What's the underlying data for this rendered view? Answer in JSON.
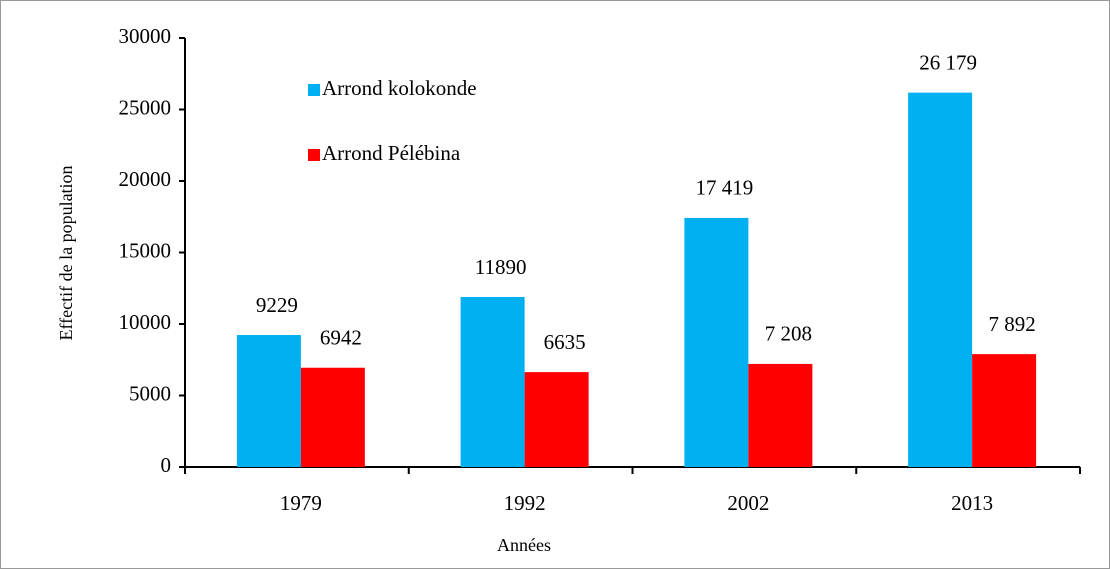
{
  "chart_data": {
    "type": "bar",
    "x_label": "Années",
    "y_label": "Effectif de la population",
    "categories": [
      "1979",
      "1992",
      "2002",
      "2013"
    ],
    "series": [
      {
        "name": "Arrond kolokonde",
        "color": "#00b0f0",
        "values": [
          9229,
          11890,
          17419,
          26179
        ],
        "value_labels": [
          "9229",
          "11890",
          "17 419",
          "26 179"
        ]
      },
      {
        "name": "Arrond Pélébina",
        "color": "#ff0000",
        "values": [
          6942,
          6635,
          7208,
          7892
        ],
        "value_labels": [
          "6942",
          "6635",
          "7 208",
          "7 892"
        ]
      }
    ],
    "ylim": [
      0,
      30000
    ],
    "yticks": [
      0,
      5000,
      10000,
      15000,
      20000,
      25000,
      30000
    ],
    "grid": false,
    "legend": "upper left"
  }
}
